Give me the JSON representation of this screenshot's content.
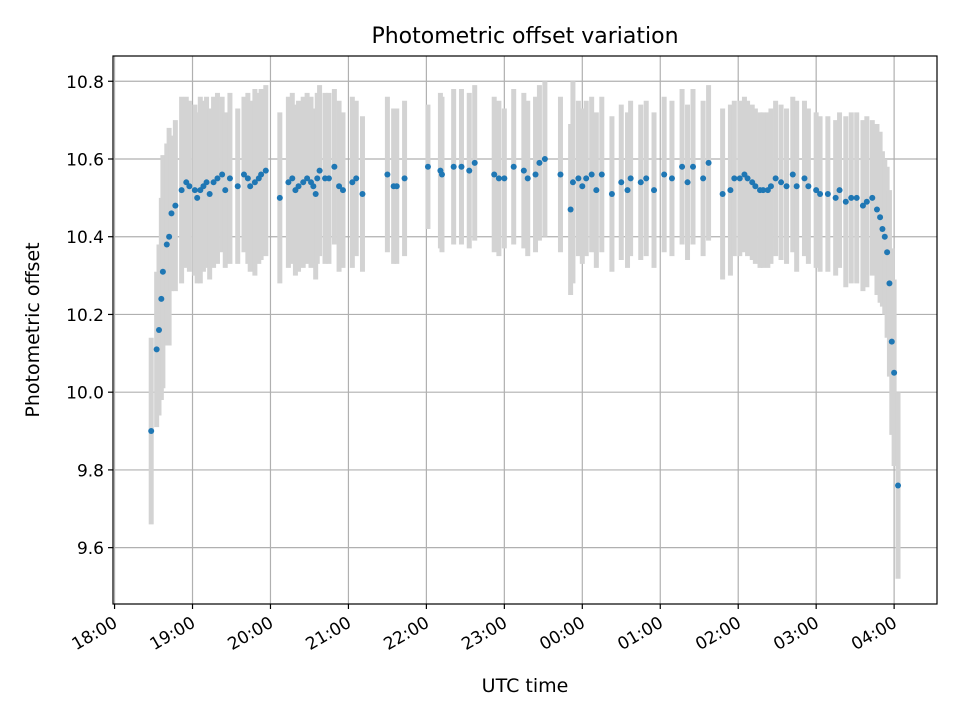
{
  "chart_data": {
    "type": "scatter",
    "title": "Photometric offset variation",
    "xlabel": "UTC time",
    "ylabel": "Photometric offset",
    "xlim": [
      -0.02,
      10.55
    ],
    "ylim": [
      9.455,
      10.865
    ],
    "grid": true,
    "x_ticks": [
      {
        "value": 0,
        "label": "18:00"
      },
      {
        "value": 1,
        "label": "19:00"
      },
      {
        "value": 2,
        "label": "20:00"
      },
      {
        "value": 3,
        "label": "21:00"
      },
      {
        "value": 4,
        "label": "22:00"
      },
      {
        "value": 5,
        "label": "23:00"
      },
      {
        "value": 6,
        "label": "00:00"
      },
      {
        "value": 7,
        "label": "01:00"
      },
      {
        "value": 8,
        "label": "02:00"
      },
      {
        "value": 9,
        "label": "03:00"
      },
      {
        "value": 10,
        "label": "04:00"
      }
    ],
    "y_ticks": [
      {
        "value": 9.6,
        "label": "9.6"
      },
      {
        "value": 9.8,
        "label": "9.8"
      },
      {
        "value": 10.0,
        "label": "10.0"
      },
      {
        "value": 10.2,
        "label": "10.2"
      },
      {
        "value": 10.4,
        "label": "10.4"
      },
      {
        "value": 10.6,
        "label": "10.6"
      },
      {
        "value": 10.8,
        "label": "10.8"
      }
    ],
    "marker_color": "#1f77b4",
    "errorbar_color": "#d3d3d3",
    "series": [
      {
        "name": "Photometric offset",
        "points": [
          [
            0.47,
            9.9,
            0.24
          ],
          [
            0.54,
            10.11,
            0.2
          ],
          [
            0.57,
            10.16,
            0.22
          ],
          [
            0.6,
            10.24,
            0.26
          ],
          [
            0.62,
            10.31,
            0.3
          ],
          [
            0.67,
            10.38,
            0.26
          ],
          [
            0.7,
            10.4,
            0.28
          ],
          [
            0.73,
            10.46,
            0.2
          ],
          [
            0.78,
            10.48,
            0.22
          ],
          [
            0.86,
            10.52,
            0.24
          ],
          [
            0.92,
            10.54,
            0.22
          ],
          [
            0.96,
            10.53,
            0.22
          ],
          [
            1.03,
            10.52,
            0.22
          ],
          [
            1.06,
            10.5,
            0.22
          ],
          [
            1.1,
            10.52,
            0.24
          ],
          [
            1.14,
            10.53,
            0.22
          ],
          [
            1.18,
            10.54,
            0.22
          ],
          [
            1.22,
            10.51,
            0.22
          ],
          [
            1.27,
            10.54,
            0.22
          ],
          [
            1.32,
            10.55,
            0.22
          ],
          [
            1.38,
            10.56,
            0.2
          ],
          [
            1.42,
            10.52,
            0.2
          ],
          [
            1.48,
            10.55,
            0.22
          ],
          [
            1.58,
            10.53,
            0.2
          ],
          [
            1.66,
            10.56,
            0.2
          ],
          [
            1.71,
            10.55,
            0.22
          ],
          [
            1.74,
            10.53,
            0.22
          ],
          [
            1.8,
            10.54,
            0.24
          ],
          [
            1.85,
            10.55,
            0.22
          ],
          [
            1.88,
            10.56,
            0.22
          ],
          [
            1.94,
            10.57,
            0.22
          ],
          [
            2.12,
            10.5,
            0.22
          ],
          [
            2.23,
            10.54,
            0.22
          ],
          [
            2.28,
            10.55,
            0.22
          ],
          [
            2.32,
            10.52,
            0.22
          ],
          [
            2.36,
            10.53,
            0.22
          ],
          [
            2.42,
            10.54,
            0.22
          ],
          [
            2.47,
            10.55,
            0.22
          ],
          [
            2.52,
            10.54,
            0.22
          ],
          [
            2.55,
            10.53,
            0.2
          ],
          [
            2.58,
            10.51,
            0.22
          ],
          [
            2.6,
            10.55,
            0.22
          ],
          [
            2.63,
            10.57,
            0.22
          ],
          [
            2.7,
            10.55,
            0.22
          ],
          [
            2.75,
            10.55,
            0.22
          ],
          [
            2.82,
            10.58,
            0.2
          ],
          [
            2.88,
            10.53,
            0.22
          ],
          [
            2.93,
            10.52,
            0.2
          ],
          [
            3.05,
            10.54,
            0.22
          ],
          [
            3.1,
            10.55,
            0.2
          ],
          [
            3.18,
            10.51,
            0.2
          ],
          [
            3.5,
            10.56,
            0.2
          ],
          [
            3.58,
            10.53,
            0.2
          ],
          [
            3.62,
            10.53,
            0.2
          ],
          [
            3.72,
            10.55,
            0.2
          ],
          [
            4.02,
            10.58,
            0.16
          ],
          [
            4.18,
            10.57,
            0.2
          ],
          [
            4.2,
            10.56,
            0.2
          ],
          [
            4.35,
            10.58,
            0.2
          ],
          [
            4.45,
            10.58,
            0.2
          ],
          [
            4.55,
            10.57,
            0.2
          ],
          [
            4.62,
            10.59,
            0.2
          ],
          [
            4.87,
            10.56,
            0.2
          ],
          [
            4.93,
            10.55,
            0.2
          ],
          [
            5.0,
            10.55,
            0.18
          ],
          [
            5.12,
            10.58,
            0.2
          ],
          [
            5.25,
            10.57,
            0.2
          ],
          [
            5.3,
            10.55,
            0.2
          ],
          [
            5.4,
            10.56,
            0.2
          ],
          [
            5.45,
            10.59,
            0.2
          ],
          [
            5.52,
            10.6,
            0.2
          ],
          [
            5.72,
            10.56,
            0.2
          ],
          [
            5.85,
            10.47,
            0.22
          ],
          [
            5.88,
            10.54,
            0.26
          ],
          [
            5.95,
            10.55,
            0.2
          ],
          [
            6.0,
            10.53,
            0.2
          ],
          [
            6.05,
            10.55,
            0.2
          ],
          [
            6.12,
            10.56,
            0.2
          ],
          [
            6.18,
            10.52,
            0.2
          ],
          [
            6.25,
            10.56,
            0.2
          ],
          [
            6.38,
            10.51,
            0.2
          ],
          [
            6.5,
            10.54,
            0.2
          ],
          [
            6.58,
            10.52,
            0.2
          ],
          [
            6.62,
            10.55,
            0.2
          ],
          [
            6.75,
            10.54,
            0.2
          ],
          [
            6.82,
            10.55,
            0.2
          ],
          [
            6.92,
            10.52,
            0.2
          ],
          [
            7.05,
            10.56,
            0.2
          ],
          [
            7.15,
            10.55,
            0.2
          ],
          [
            7.28,
            10.58,
            0.2
          ],
          [
            7.35,
            10.54,
            0.2
          ],
          [
            7.42,
            10.58,
            0.2
          ],
          [
            7.55,
            10.55,
            0.2
          ],
          [
            7.62,
            10.59,
            0.2
          ],
          [
            7.8,
            10.51,
            0.22
          ],
          [
            7.9,
            10.52,
            0.22
          ],
          [
            7.95,
            10.55,
            0.2
          ],
          [
            8.02,
            10.55,
            0.2
          ],
          [
            8.08,
            10.56,
            0.2
          ],
          [
            8.12,
            10.55,
            0.2
          ],
          [
            8.18,
            10.54,
            0.2
          ],
          [
            8.22,
            10.53,
            0.2
          ],
          [
            8.28,
            10.52,
            0.2
          ],
          [
            8.32,
            10.52,
            0.2
          ],
          [
            8.38,
            10.52,
            0.2
          ],
          [
            8.42,
            10.53,
            0.2
          ],
          [
            8.48,
            10.55,
            0.2
          ],
          [
            8.55,
            10.54,
            0.2
          ],
          [
            8.62,
            10.53,
            0.2
          ],
          [
            8.7,
            10.56,
            0.2
          ],
          [
            8.75,
            10.53,
            0.22
          ],
          [
            8.85,
            10.55,
            0.2
          ],
          [
            8.9,
            10.53,
            0.2
          ],
          [
            9.0,
            10.52,
            0.2
          ],
          [
            9.05,
            10.51,
            0.2
          ],
          [
            9.15,
            10.51,
            0.2
          ],
          [
            9.25,
            10.5,
            0.2
          ],
          [
            9.3,
            10.52,
            0.2
          ],
          [
            9.38,
            10.49,
            0.22
          ],
          [
            9.45,
            10.5,
            0.22
          ],
          [
            9.52,
            10.5,
            0.22
          ],
          [
            9.6,
            10.48,
            0.22
          ],
          [
            9.65,
            10.49,
            0.22
          ],
          [
            9.72,
            10.5,
            0.2
          ],
          [
            9.78,
            10.47,
            0.22
          ],
          [
            9.82,
            10.45,
            0.22
          ],
          [
            9.85,
            10.42,
            0.2
          ],
          [
            9.88,
            10.4,
            0.2
          ],
          [
            9.91,
            10.36,
            0.22
          ],
          [
            9.94,
            10.28,
            0.24
          ],
          [
            9.97,
            10.13,
            0.24
          ],
          [
            10.0,
            10.05,
            0.24
          ],
          [
            10.05,
            9.76,
            0.24
          ]
        ]
      }
    ]
  }
}
